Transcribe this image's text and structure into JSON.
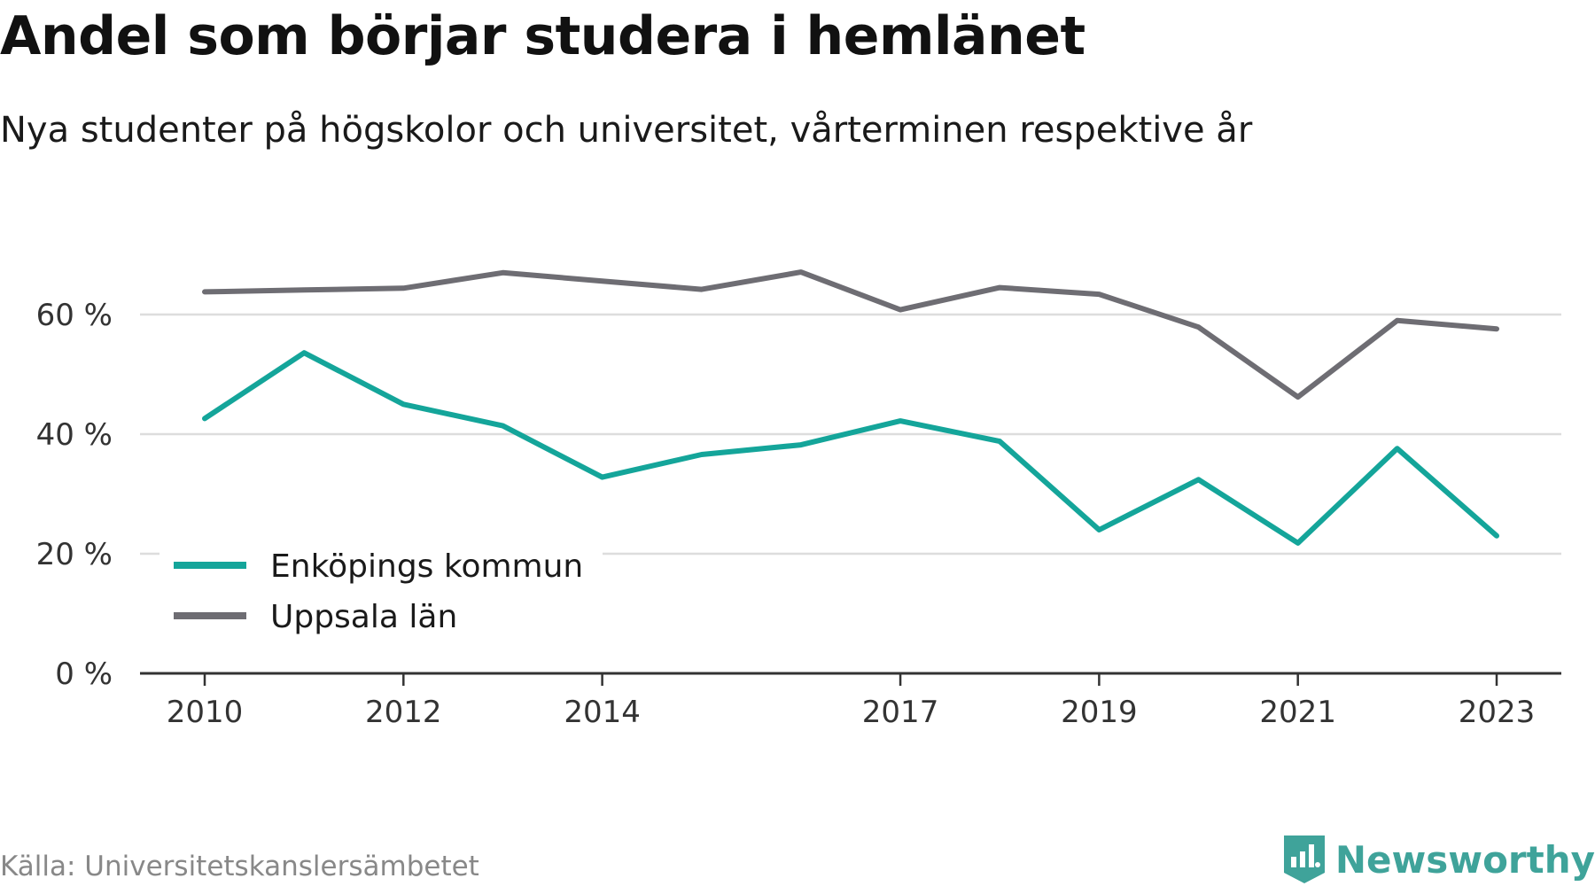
{
  "title": "Andel som börjar studera i hemlänet",
  "subtitle": "Nya studenter på högskolor och universitet, vårterminen respektive år",
  "source": "Källa: Universitetskanslersämbetet",
  "brand": "Newsworthy",
  "colors": {
    "enkoping": "#14a59a",
    "uppsala": "#6e6d73",
    "grid": "#dddddd",
    "axis": "#333333",
    "brand": "#3fa39a"
  },
  "chart_data": {
    "type": "line",
    "x": [
      2010,
      2011,
      2012,
      2013,
      2014,
      2015,
      2016,
      2017,
      2018,
      2019,
      2020,
      2021,
      2022,
      2023
    ],
    "x_tick_labels": [
      "2010",
      "2012",
      "2014",
      "2017",
      "2019",
      "2021",
      "2023"
    ],
    "y_ticks": [
      0,
      20,
      40,
      60
    ],
    "y_tick_labels": [
      "0 %",
      "20 %",
      "40 %",
      "60 %"
    ],
    "ylim": [
      0,
      70
    ],
    "grid": true,
    "legend_position": "bottom-left",
    "series": [
      {
        "name": "Enköpings kommun",
        "color_key": "enkoping",
        "values": [
          42.6,
          53.6,
          45.0,
          41.4,
          32.8,
          36.6,
          38.2,
          42.2,
          38.8,
          24.0,
          32.4,
          21.8,
          37.6,
          23.0
        ]
      },
      {
        "name": "Uppsala län",
        "color_key": "uppsala",
        "values": [
          63.8,
          64.1,
          64.4,
          67.0,
          65.6,
          64.2,
          67.1,
          60.8,
          64.5,
          63.4,
          57.9,
          46.2,
          59.0,
          57.6
        ]
      }
    ]
  }
}
